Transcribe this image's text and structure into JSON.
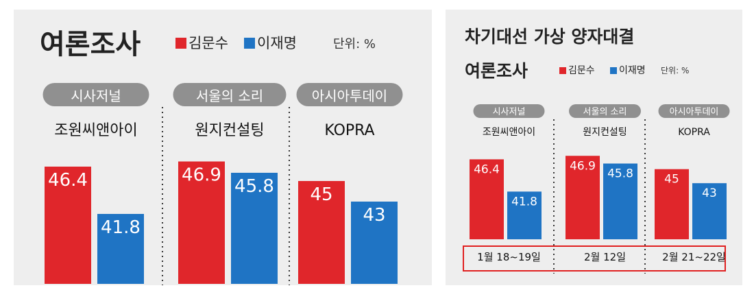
{
  "chart_data": [
    {
      "type": "bar",
      "title": "여론조사",
      "unit": "단위: %",
      "categories": [
        {
          "source": "시사저널",
          "pollster": "조원씨앤아이"
        },
        {
          "source": "서울의 소리",
          "pollster": "원지컨설팅"
        },
        {
          "source": "아시아투데이",
          "pollster": "KOPRA"
        }
      ],
      "series": [
        {
          "name": "김문수",
          "color": "#e0262b",
          "values": [
            46.4,
            46.9,
            45
          ]
        },
        {
          "name": "이재명",
          "color": "#1f74c4",
          "values": [
            41.8,
            45.8,
            43
          ]
        }
      ],
      "value_labels": [
        [
          "46.4",
          "46.9",
          "45"
        ],
        [
          "41.8",
          "45.8",
          "43"
        ]
      ],
      "ylim": [
        35,
        48
      ],
      "legend": "top",
      "grid": false
    },
    {
      "type": "bar",
      "title": "차기대선 가상 양자대결",
      "subtitle": "여론조사",
      "unit": "단위: %",
      "categories": [
        {
          "source": "시사저널",
          "pollster": "조원씨앤아이",
          "date": "1월 18~19일"
        },
        {
          "source": "서울의 소리",
          "pollster": "원지컨설팅",
          "date": "2월 12일"
        },
        {
          "source": "아시아투데이",
          "pollster": "KOPRA",
          "date": "2월 21~22일"
        }
      ],
      "series": [
        {
          "name": "김문수",
          "color": "#e0262b",
          "values": [
            46.4,
            46.9,
            45
          ]
        },
        {
          "name": "이재명",
          "color": "#1f74c4",
          "values": [
            41.8,
            45.8,
            43
          ]
        }
      ],
      "value_labels": [
        [
          "46.4",
          "46.9",
          "45"
        ],
        [
          "41.8",
          "45.8",
          "43"
        ]
      ],
      "ylim": [
        35,
        48
      ],
      "legend": "top",
      "grid": false
    }
  ],
  "colors": {
    "pill": "#909090",
    "date_box_border": "#e02020",
    "background": "#eeeeee"
  }
}
